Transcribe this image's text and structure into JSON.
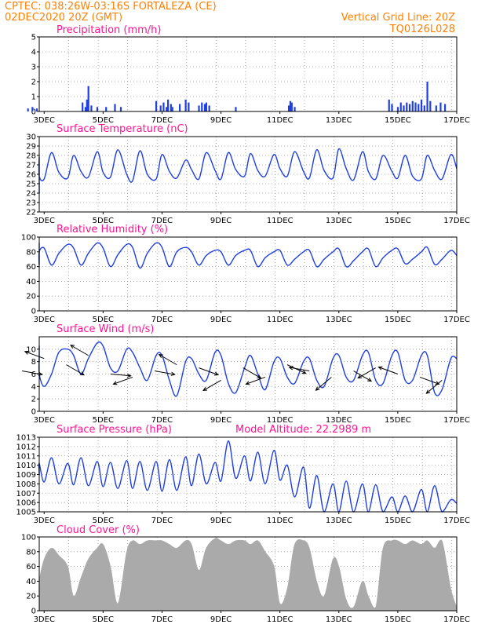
{
  "header": {
    "left_line1": "CPTEC:   038:26W-03:16S  FORTALEZA (CE)",
    "left_line2": "02DEC2020 20Z (GMT)",
    "right_line1": "Vertical Grid Line: 20Z",
    "right_line2": "TQ0126L028"
  },
  "colors": {
    "header": "#ff8000",
    "title": "#ff1493",
    "series": "#1f3fe0",
    "arrows": "#000000",
    "cloud": "#aaaaaa"
  },
  "x_axis": {
    "labels": [
      "3DEC",
      "5DEC",
      "7DEC",
      "9DEC",
      "11DEC",
      "13DEC",
      "15DEC",
      "17DEC"
    ],
    "start": "02DEC2020 20Z",
    "end": "17DEC2020 00Z"
  },
  "chart_data": [
    {
      "type": "bar",
      "title": "Precipitation (mm/h)",
      "ylim": [
        0,
        5
      ],
      "yticks": [
        "0",
        "1",
        "2",
        "3",
        "4",
        "5"
      ],
      "x_days": [
        2.45,
        2.6,
        2.75,
        4.3,
        4.4,
        4.45,
        4.5,
        4.6,
        4.8,
        5.1,
        5.4,
        5.6,
        6.8,
        6.95,
        7.05,
        7.15,
        7.2,
        7.3,
        7.35,
        7.6,
        7.8,
        7.9,
        8.25,
        8.35,
        8.45,
        8.5,
        8.6,
        9.5,
        11.3,
        11.35,
        11.4,
        11.5,
        14.7,
        14.8,
        15.0,
        15.1,
        15.2,
        15.3,
        15.4,
        15.5,
        15.6,
        15.7,
        15.8,
        15.9,
        16.0,
        16.1,
        16.3,
        16.45,
        16.6
      ],
      "values": [
        0.2,
        0.3,
        0.2,
        0.6,
        0.3,
        0.8,
        1.7,
        0.4,
        0.3,
        0.3,
        0.5,
        0.3,
        0.7,
        0.4,
        0.6,
        0.3,
        0.8,
        0.5,
        0.3,
        0.5,
        0.8,
        0.6,
        0.4,
        0.6,
        0.5,
        0.6,
        0.4,
        0.3,
        0.4,
        0.7,
        0.6,
        0.3,
        0.8,
        0.5,
        0.3,
        0.6,
        0.4,
        0.6,
        0.5,
        0.7,
        0.6,
        0.5,
        0.8,
        0.4,
        2.0,
        0.7,
        0.4,
        0.6,
        0.5
      ]
    },
    {
      "type": "line",
      "title": "Surface Temperature (nC)",
      "ylim": [
        22,
        30
      ],
      "yticks": [
        "22",
        "23",
        "24",
        "25",
        "26",
        "27",
        "28",
        "29",
        "30"
      ],
      "x_days": [
        2.0,
        2.25,
        2.5,
        2.8,
        3.0,
        3.25,
        3.5,
        3.8,
        4.0,
        4.25,
        4.5,
        4.8,
        5.0,
        5.25,
        5.5,
        5.8,
        6.0,
        6.25,
        6.5,
        6.8,
        7.0,
        7.25,
        7.5,
        7.8,
        8.0,
        8.25,
        8.5,
        8.8,
        9.0,
        9.25,
        9.5,
        9.8,
        10.0,
        10.25,
        10.5,
        10.8,
        11.0,
        11.25,
        11.5,
        11.8,
        12.0,
        12.25,
        12.5,
        12.8,
        13.0,
        13.25,
        13.5,
        13.8,
        14.0,
        14.25,
        14.5,
        14.8,
        15.0,
        15.25,
        15.5,
        15.8,
        16.0,
        16.25,
        16.5,
        16.8,
        17.0
      ],
      "values": [
        24.0,
        24.5,
        27.8,
        25.8,
        25.5,
        28.3,
        26.2,
        25.6,
        28.0,
        26.3,
        25.7,
        28.4,
        26.2,
        25.7,
        28.6,
        26.0,
        25.3,
        28.5,
        26.0,
        25.5,
        28.1,
        26.3,
        25.6,
        27.5,
        26.5,
        25.5,
        28.3,
        26.4,
        25.5,
        28.3,
        26.5,
        25.8,
        28.2,
        26.4,
        25.8,
        28.1,
        26.6,
        25.8,
        28.4,
        26.3,
        25.6,
        28.6,
        26.4,
        25.6,
        28.7,
        26.6,
        25.4,
        28.4,
        26.3,
        25.5,
        28.0,
        26.3,
        25.6,
        28.0,
        25.8,
        25.5,
        28.0,
        26.4,
        25.5,
        28.1,
        26.6
      ]
    },
    {
      "type": "line",
      "title": "Relative Humidity (%)",
      "ylim": [
        0,
        100
      ],
      "yticks": [
        "0",
        "20",
        "40",
        "60",
        "80",
        "100"
      ],
      "x_days": [
        2.0,
        2.25,
        2.5,
        2.8,
        3.0,
        3.25,
        3.5,
        3.8,
        4.0,
        4.25,
        4.5,
        4.8,
        5.0,
        5.25,
        5.5,
        5.8,
        6.0,
        6.25,
        6.5,
        6.8,
        7.0,
        7.25,
        7.5,
        7.8,
        8.0,
        8.25,
        8.5,
        8.8,
        9.0,
        9.25,
        9.5,
        9.8,
        10.0,
        10.25,
        10.5,
        10.8,
        11.0,
        11.25,
        11.5,
        11.8,
        12.0,
        12.25,
        12.5,
        12.8,
        13.0,
        13.25,
        13.5,
        13.8,
        14.0,
        14.25,
        14.5,
        14.8,
        15.0,
        15.25,
        15.5,
        15.8,
        16.0,
        16.25,
        16.5,
        16.8,
        17.0
      ],
      "values": [
        92,
        86,
        62,
        80,
        85,
        62,
        78,
        90,
        85,
        62,
        78,
        92,
        85,
        60,
        76,
        90,
        86,
        58,
        78,
        92,
        86,
        60,
        80,
        86,
        80,
        62,
        75,
        82,
        80,
        62,
        75,
        82,
        82,
        60,
        72,
        80,
        82,
        62,
        70,
        80,
        82,
        60,
        70,
        80,
        84,
        60,
        68,
        80,
        84,
        60,
        72,
        82,
        84,
        64,
        70,
        80,
        86,
        63,
        70,
        82,
        75
      ]
    },
    {
      "type": "line",
      "title": "Surface Wind (m/s)",
      "ylim": [
        0,
        12
      ],
      "yticks": [
        "0",
        "2",
        "4",
        "6",
        "8",
        "10"
      ],
      "x_days": [
        2.0,
        2.25,
        2.5,
        2.8,
        3.0,
        3.25,
        3.5,
        3.8,
        4.0,
        4.25,
        4.5,
        4.8,
        5.0,
        5.25,
        5.5,
        5.8,
        6.0,
        6.25,
        6.5,
        6.8,
        7.0,
        7.25,
        7.5,
        7.8,
        8.0,
        8.25,
        8.5,
        8.8,
        9.0,
        9.25,
        9.5,
        9.8,
        10.0,
        10.25,
        10.5,
        10.8,
        11.0,
        11.25,
        11.5,
        11.8,
        12.0,
        12.25,
        12.5,
        12.8,
        13.0,
        13.25,
        13.5,
        13.8,
        14.0,
        14.25,
        14.5,
        14.8,
        15.0,
        15.25,
        15.5,
        15.8,
        16.0,
        16.25,
        16.5,
        16.8,
        17.0
      ],
      "values": [
        8.0,
        10.5,
        9.0,
        6.0,
        4.0,
        6.0,
        9.5,
        10.0,
        9.0,
        6.0,
        8.5,
        11.0,
        10.5,
        7.0,
        6.5,
        10.0,
        9.5,
        7.0,
        5.0,
        9.0,
        9.0,
        5.0,
        2.5,
        8.0,
        8.5,
        6.0,
        5.0,
        9.5,
        9.0,
        4.5,
        3.0,
        7.0,
        9.0,
        6.0,
        3.5,
        8.0,
        8.5,
        5.5,
        4.5,
        8.0,
        8.5,
        5.0,
        4.0,
        8.5,
        9.0,
        5.5,
        5.0,
        9.0,
        9.5,
        5.0,
        4.5,
        9.0,
        9.5,
        5.0,
        5.0,
        9.0,
        9.0,
        3.0,
        3.5,
        8.5,
        8.5
      ]
    },
    {
      "type": "line",
      "title": "Surface Pressure (hPa)",
      "subtitle": "Model Altitude: 22.2989 m",
      "ylim": [
        1005,
        1013
      ],
      "yticks": [
        "1005",
        "1006",
        "1007",
        "1008",
        "1009",
        "1010",
        "1011",
        "1012",
        "1013"
      ],
      "x_days": [
        2.0,
        2.25,
        2.5,
        2.8,
        3.0,
        3.25,
        3.5,
        3.8,
        4.0,
        4.25,
        4.5,
        4.8,
        5.0,
        5.25,
        5.5,
        5.8,
        6.0,
        6.25,
        6.5,
        6.8,
        7.0,
        7.25,
        7.5,
        7.8,
        8.0,
        8.25,
        8.5,
        8.8,
        9.0,
        9.25,
        9.5,
        9.8,
        10.0,
        10.25,
        10.5,
        10.8,
        11.0,
        11.25,
        11.5,
        11.8,
        12.0,
        12.25,
        12.5,
        12.8,
        13.0,
        13.25,
        13.5,
        13.8,
        14.0,
        14.25,
        14.5,
        14.8,
        15.0,
        15.25,
        15.5,
        15.8,
        16.0,
        16.25,
        16.5,
        16.8,
        17.0
      ],
      "values": [
        1009.3,
        1009.5,
        1009.0,
        1010.2,
        1008.2,
        1010.8,
        1008.0,
        1010.2,
        1007.9,
        1010.8,
        1007.8,
        1010.4,
        1007.7,
        1010.3,
        1007.5,
        1010.5,
        1007.5,
        1010.4,
        1007.3,
        1010.4,
        1007.2,
        1010.6,
        1007.3,
        1010.9,
        1007.8,
        1011.2,
        1008.0,
        1010.3,
        1008.3,
        1012.6,
        1008.6,
        1011.0,
        1008.3,
        1011.4,
        1008.0,
        1011.6,
        1008.4,
        1010.0,
        1006.6,
        1009.8,
        1005.4,
        1008.9,
        1005.0,
        1008.0,
        1004.9,
        1008.3,
        1004.7,
        1008.0,
        1004.9,
        1007.9,
        1005.0,
        1006.6,
        1004.9,
        1006.7,
        1004.9,
        1007.4,
        1005.0,
        1007.8,
        1004.9,
        1006.3,
        1005.9
      ]
    },
    {
      "type": "area",
      "title": "Cloud Cover (%)",
      "ylim": [
        0,
        100
      ],
      "yticks": [
        "0",
        "20",
        "40",
        "60",
        "80",
        "100"
      ],
      "x_days": [
        2.0,
        2.25,
        2.5,
        2.8,
        3.0,
        3.25,
        3.5,
        3.8,
        4.0,
        4.25,
        4.5,
        4.8,
        5.0,
        5.25,
        5.5,
        5.8,
        6.0,
        6.25,
        6.5,
        6.8,
        7.0,
        7.25,
        7.5,
        7.8,
        8.0,
        8.25,
        8.5,
        8.8,
        9.0,
        9.25,
        9.5,
        9.8,
        10.0,
        10.25,
        10.5,
        10.8,
        11.0,
        11.25,
        11.5,
        11.8,
        12.0,
        12.25,
        12.5,
        12.8,
        13.0,
        13.25,
        13.5,
        13.8,
        14.0,
        14.25,
        14.5,
        14.8,
        15.0,
        15.25,
        15.5,
        15.8,
        16.0,
        16.25,
        16.5,
        16.8,
        17.0
      ],
      "values": [
        30,
        45,
        15,
        40,
        70,
        85,
        75,
        60,
        20,
        45,
        70,
        85,
        90,
        60,
        10,
        80,
        95,
        90,
        95,
        95,
        95,
        90,
        85,
        95,
        90,
        55,
        85,
        98,
        95,
        90,
        95,
        95,
        90,
        95,
        80,
        60,
        10,
        30,
        90,
        95,
        85,
        40,
        20,
        70,
        60,
        15,
        5,
        40,
        20,
        5,
        85,
        95,
        95,
        90,
        95,
        90,
        95,
        85,
        95,
        30,
        5
      ]
    }
  ],
  "wind_vectors": {
    "x_days": [
      2.25,
      3.0,
      3.75,
      4.5,
      5.25,
      6.0,
      6.75,
      7.5,
      8.25,
      9.0,
      9.75,
      10.5,
      11.25,
      12.0,
      12.75,
      13.5,
      14.25,
      15.0,
      15.75,
      16.5
    ],
    "speed": [
      6.5,
      8.5,
      7.5,
      9.0,
      6.0,
      5.5,
      6.5,
      7.5,
      7.0,
      5.0,
      7.0,
      5.5,
      7.5,
      6.5,
      5.5,
      6.5,
      7.0,
      6.0,
      5.5,
      5.0
    ],
    "direction_deg": [
      100,
      290,
      120,
      300,
      95,
      250,
      100,
      300,
      110,
      240,
      120,
      250,
      115,
      280,
      230,
      120,
      240,
      290,
      110,
      230
    ]
  }
}
